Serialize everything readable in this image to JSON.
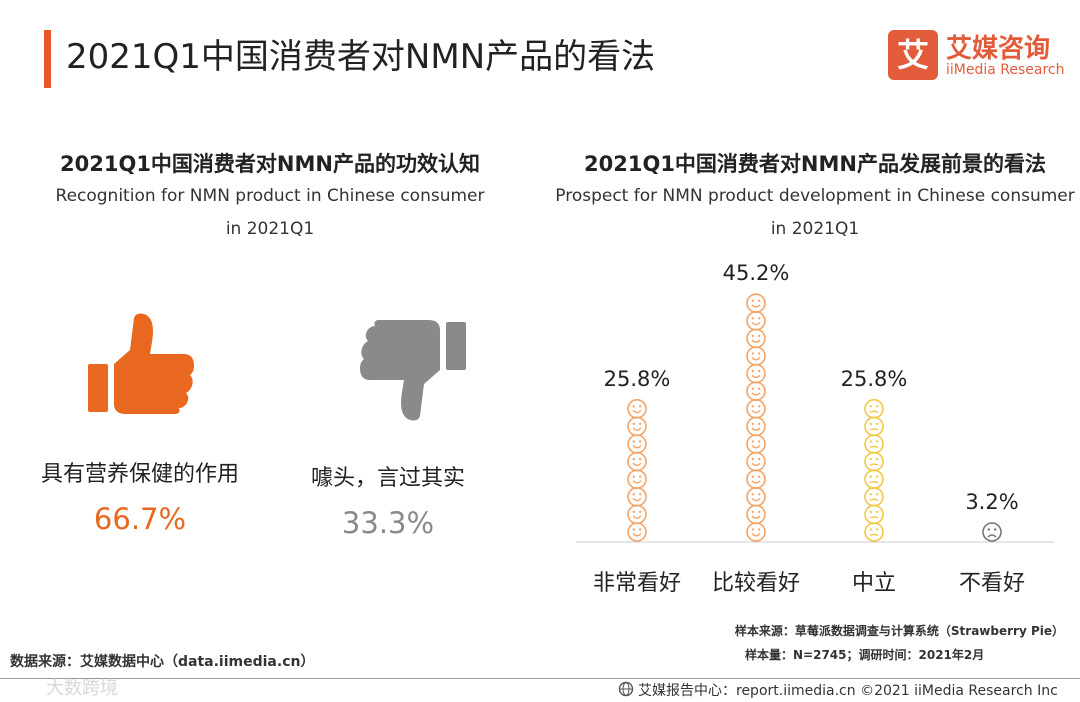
{
  "title": "2021Q1中国消费者对NMN产品的看法",
  "logo": {
    "cn": "艾媒咨询",
    "en": "iiMedia Research",
    "mark": "艾"
  },
  "colors": {
    "accent": "#e8552c",
    "orange": "#e8681f",
    "gray": "#8a8a8a",
    "smile": "#f4a466",
    "neutral": "#f3c843",
    "sad": "#777777"
  },
  "left_chart": {
    "title_cn": "2021Q1中国消费者对NMN产品的功效认知",
    "title_en_1": "Recognition for NMN product in Chinese consumer",
    "title_en_2": "in 2021Q1",
    "items": [
      {
        "label": "具有营养保健的作用",
        "value": "66.7%",
        "icon": "thumbs-up-icon"
      },
      {
        "label": "噱头，言过其实",
        "value": "33.3%",
        "icon": "thumbs-down-icon"
      }
    ]
  },
  "right_chart": {
    "title_cn": "2021Q1中国消费者对NMN产品发展前景的看法",
    "title_en_1": "Prospect for NMN product development in Chinese consumer",
    "title_en_2": "in 2021Q1"
  },
  "chart_data": [
    {
      "type": "pie",
      "title": "2021Q1中国消费者对NMN产品的功效认知",
      "categories": [
        "具有营养保健的作用",
        "噱头，言过其实"
      ],
      "values": [
        66.7,
        33.3
      ],
      "labels": [
        "66.7%",
        "33.3%"
      ]
    },
    {
      "type": "bar",
      "title": "2021Q1中国消费者对NMN产品发展前景的看法",
      "categories": [
        "非常看好",
        "比较看好",
        "中立",
        "不看好"
      ],
      "values": [
        25.8,
        45.2,
        25.8,
        3.2
      ],
      "labels": [
        "25.8%",
        "45.2%",
        "25.8%",
        "3.2%"
      ],
      "faces": [
        "smile",
        "smile",
        "neutral",
        "sad"
      ],
      "ylim": [
        0,
        45.2
      ]
    }
  ],
  "notes": {
    "source_line": "样本来源：草莓派数据调查与计算系统（Strawberry Pie）",
    "sample_line": "样本量：N=2745；调研时间：2021年2月"
  },
  "data_source": "数据来源：艾媒数据中心（data.iimedia.cn）",
  "footer": "艾媒报告中心：report.iimedia.cn  ©2021  iiMedia Research  Inc",
  "watermark": "大数跨境"
}
